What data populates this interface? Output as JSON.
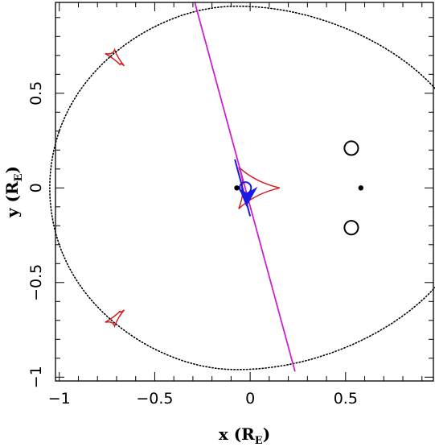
{
  "chart_data": {
    "type": "scatter",
    "title": "",
    "xlabel": {
      "main": "x (R",
      "sub": "E",
      "close": ")"
    },
    "ylabel": {
      "main": "y (R",
      "sub": "E",
      "close": ")"
    },
    "xlim": [
      -1.02,
      0.96
    ],
    "ylim": [
      -1.02,
      0.98
    ],
    "xticks_major": [
      -1,
      -0.5,
      0,
      0.5
    ],
    "xtick_labels": [
      "−1",
      "−0.5",
      "0",
      "0.5"
    ],
    "yticks_major": [
      -1,
      -0.5,
      0,
      0.5
    ],
    "ytick_labels": [
      "−1",
      "−0.5",
      "0",
      "0.5"
    ],
    "minor_tick_step": 0.1,
    "grid": false,
    "colors": {
      "caustic": "#d42020",
      "critical_curve": "#000000",
      "trajectory": "#cc22cc",
      "source": "#1a1ae6",
      "lens": "#000000",
      "images": "#000000"
    },
    "lens_masses": [
      {
        "x": -0.07,
        "y": 0.0
      },
      {
        "x": 0.58,
        "y": 0.0
      }
    ],
    "trajectory_line": [
      {
        "x": -0.29,
        "y": 0.98
      },
      {
        "x": 0.235,
        "y": -0.97
      }
    ],
    "critical_curve_shape": {
      "center_x": -0.07,
      "center_y": 0.0,
      "left_radius_x": 0.98,
      "right_radius_x": 1.25,
      "radius_y": 0.96
    },
    "caustics": [
      {
        "name": "central",
        "cusps": [
          [
            -0.045,
            0.0
          ],
          [
            0.155,
            0.0
          ],
          [
            -0.06,
            0.11
          ],
          [
            -0.06,
            -0.11
          ]
        ],
        "concave": 0.45
      },
      {
        "name": "planetary-top",
        "cusps": [
          [
            -0.76,
            0.71
          ],
          [
            -0.71,
            0.73
          ],
          [
            -0.68,
            0.65
          ],
          [
            -0.66,
            0.645
          ]
        ],
        "concave": 0.5
      },
      {
        "name": "planetary-bottom",
        "cusps": [
          [
            -0.76,
            -0.71
          ],
          [
            -0.71,
            -0.73
          ],
          [
            -0.68,
            -0.65
          ],
          [
            -0.66,
            -0.645
          ]
        ],
        "concave": 0.5
      }
    ],
    "image_circles": [
      {
        "x": 0.53,
        "y": 0.21,
        "r": 0.036
      },
      {
        "x": 0.53,
        "y": -0.21,
        "r": 0.036
      }
    ],
    "source": {
      "circle": {
        "x": -0.025,
        "y": 0.0,
        "r": 0.03
      },
      "segment": [
        [
          -0.08,
          0.15
        ],
        [
          0.0,
          -0.15
        ]
      ],
      "arrow_tip": {
        "x": -0.02,
        "y": -0.1
      }
    }
  }
}
